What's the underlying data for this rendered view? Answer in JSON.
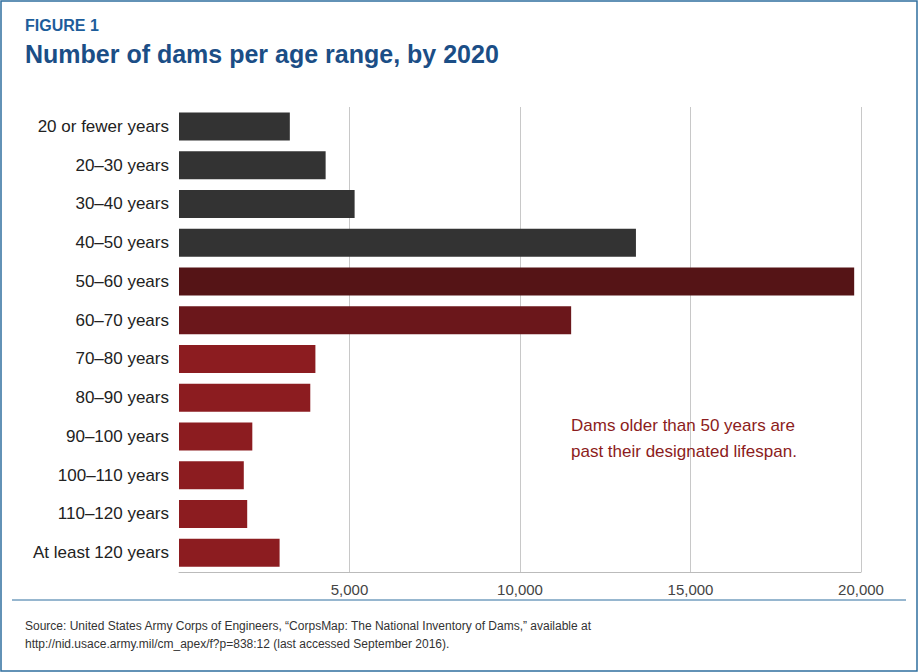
{
  "chart_data": {
    "type": "bar",
    "orientation": "horizontal",
    "figure": "FIGURE 1",
    "title": "Number of dams per age range, by 2020",
    "categories": [
      "20 or fewer years",
      "20–30 years",
      "30–40 years",
      "40–50 years",
      "50–60 years",
      "60–70 years",
      "70–80 years",
      "80–90 years",
      "90–100 years",
      "100–110 years",
      "110–120 years",
      "At least 120 years"
    ],
    "values": [
      3250,
      4300,
      5150,
      13400,
      19800,
      11500,
      4000,
      3850,
      2150,
      1900,
      2000,
      2950
    ],
    "colors": [
      "#333333",
      "#333333",
      "#333333",
      "#333333",
      "#551416",
      "#6b171b",
      "#8c1c20",
      "#8c1c20",
      "#8c1c20",
      "#8c1c20",
      "#8c1c20",
      "#8c1c20"
    ],
    "xlim": [
      0,
      20000
    ],
    "xticks": [
      {
        "value": 5000,
        "label": "5,000"
      },
      {
        "value": 10000,
        "label": "10,000"
      },
      {
        "value": 15000,
        "label": "15,000"
      },
      {
        "value": 20000,
        "label": "20,000"
      }
    ],
    "grid": true,
    "annotation": "Dams older than 50 years are\npast their designated lifespan.",
    "source": "Source: United States Army Corps of Engineers, “CorpsMap: The National Inventory of Dams,” available at\nhttp://nid.usace.army.mil/cm_apex/f?p=838:12 (last accessed September 2016)."
  }
}
